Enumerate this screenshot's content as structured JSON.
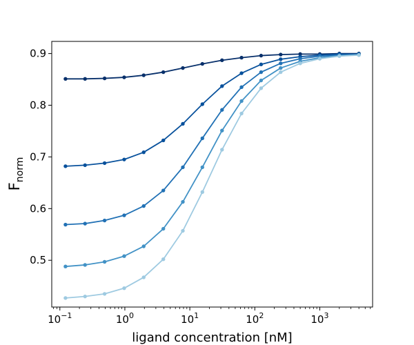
{
  "chart_data": {
    "type": "line",
    "title": "",
    "xlabel": "ligand concentration [nM]",
    "ylabel_main": "F",
    "ylabel_sub": "norm",
    "xscale": "log",
    "xlim": [
      0.075,
      6500
    ],
    "ylim": [
      0.4095,
      0.9235
    ],
    "grid": false,
    "legend": "none",
    "x_ticks": [
      {
        "value": 0.1,
        "base": "10",
        "exp": "−1"
      },
      {
        "value": 1,
        "base": "10",
        "exp": "0"
      },
      {
        "value": 10,
        "base": "10",
        "exp": "1"
      },
      {
        "value": 100,
        "base": "10",
        "exp": "2"
      },
      {
        "value": 1000,
        "base": "10",
        "exp": "3"
      }
    ],
    "y_ticks": [
      {
        "value": 0.5,
        "label": "0.5"
      },
      {
        "value": 0.6,
        "label": "0.6"
      },
      {
        "value": 0.7,
        "label": "0.7"
      },
      {
        "value": 0.8,
        "label": "0.8"
      },
      {
        "value": 0.9,
        "label": "0.9"
      }
    ],
    "x": [
      0.122,
      0.244,
      0.488,
      0.977,
      1.95,
      3.91,
      7.81,
      15.6,
      31.3,
      62.5,
      125,
      250,
      500,
      1000,
      2000,
      4000
    ],
    "series": [
      {
        "color": "#08306b",
        "values": [
          0.851,
          0.851,
          0.852,
          0.854,
          0.858,
          0.864,
          0.872,
          0.88,
          0.887,
          0.892,
          0.896,
          0.898,
          0.899,
          0.899,
          0.9,
          0.9
        ]
      },
      {
        "color": "#08519c",
        "values": [
          0.682,
          0.684,
          0.688,
          0.695,
          0.709,
          0.732,
          0.764,
          0.802,
          0.837,
          0.862,
          0.879,
          0.889,
          0.894,
          0.897,
          0.899,
          0.899
        ]
      },
      {
        "color": "#2171b5",
        "values": [
          0.569,
          0.571,
          0.577,
          0.587,
          0.605,
          0.635,
          0.68,
          0.736,
          0.791,
          0.835,
          0.864,
          0.881,
          0.89,
          0.895,
          0.897,
          0.898
        ]
      },
      {
        "color": "#4292c6",
        "values": [
          0.488,
          0.491,
          0.497,
          0.508,
          0.527,
          0.561,
          0.613,
          0.68,
          0.751,
          0.808,
          0.848,
          0.872,
          0.885,
          0.892,
          0.896,
          0.898
        ]
      },
      {
        "color": "#9ecae1",
        "values": [
          0.427,
          0.43,
          0.435,
          0.446,
          0.467,
          0.502,
          0.557,
          0.632,
          0.714,
          0.784,
          0.833,
          0.864,
          0.881,
          0.89,
          0.895,
          0.897
        ]
      }
    ]
  }
}
